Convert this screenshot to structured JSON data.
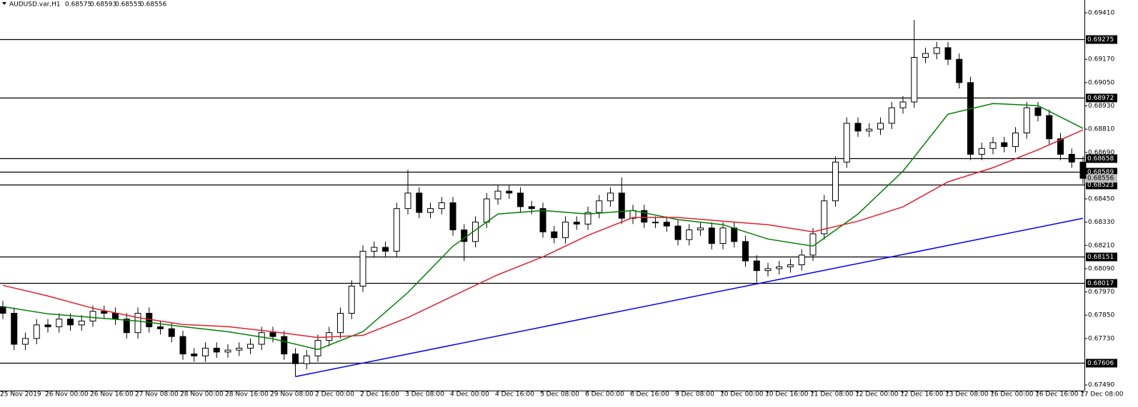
{
  "chart_data": {
    "type": "candlestick",
    "title": "AUDUSD.var,H1",
    "last_bar": [
      0.68575,
      0.68593,
      0.68555,
      0.68556
    ],
    "categories": [
      "25 Nov 2019",
      null,
      null,
      null,
      "26 Nov 00:00",
      null,
      null,
      null,
      "26 Nov 16:00",
      null,
      null,
      null,
      "27 Nov 08:00",
      null,
      null,
      null,
      "28 Nov 00:00",
      null,
      null,
      null,
      "28 Nov 16:00",
      null,
      null,
      null,
      "29 Nov 08:00",
      null,
      null,
      null,
      "2 Dec 00:00",
      null,
      null,
      null,
      "2 Dec 16:00",
      null,
      null,
      null,
      "3 Dec 08:00",
      null,
      null,
      null,
      "4 Dec 00:00",
      null,
      null,
      null,
      "4 Dec 16:00",
      null,
      null,
      null,
      "5 Dec 08:00",
      null,
      null,
      null,
      "6 Dec 00:00",
      null,
      null,
      null,
      "6 Dec 16:00",
      null,
      null,
      null,
      "9 Dec 08:00",
      null,
      null,
      null,
      "10 Dec 00:00",
      null,
      null,
      null,
      "10 Dec 16:00",
      null,
      null,
      null,
      "11 Dec 08:00",
      null,
      null,
      null,
      "12 Dec 00:00",
      null,
      null,
      null,
      "12 Dec 16:00",
      null,
      null,
      null,
      "13 Dec 08:00",
      null,
      null,
      null,
      "16 Dec 00:00",
      null,
      null,
      null,
      "16 Dec 16:00",
      null,
      null,
      null,
      "17 Dec 08:00"
    ],
    "open": [
      0.67894,
      0.6786,
      0.677,
      0.6773,
      0.678,
      0.6779,
      0.6783,
      0.678,
      0.6782,
      0.6787,
      0.6786,
      0.6783,
      0.6776,
      0.6786,
      0.6779,
      0.6778,
      0.6774,
      0.6765,
      0.6764,
      0.6768,
      0.6766,
      0.6767,
      0.6768,
      0.677,
      0.6776,
      0.6774,
      0.6765,
      0.676,
      0.6764,
      0.6772,
      0.6776,
      0.6786,
      0.68,
      0.6818,
      0.682,
      0.6818,
      0.684,
      0.6848,
      0.6838,
      0.684,
      0.6843,
      0.6829,
      0.6823,
      0.6833,
      0.6845,
      0.6849,
      0.6848,
      0.6841,
      0.684,
      0.6828,
      0.6825,
      0.6833,
      0.6832,
      0.6838,
      0.6844,
      0.6848,
      0.6835,
      0.6839,
      0.6833,
      0.6833,
      0.6831,
      0.6824,
      0.6829,
      0.683,
      0.6822,
      0.683,
      0.6823,
      0.6813,
      0.6808,
      0.6809,
      0.681,
      0.6811,
      0.6816,
      0.6827,
      0.6844,
      0.6864,
      0.6884,
      0.688,
      0.6881,
      0.6884,
      0.6892,
      0.6895,
      0.6918,
      0.692,
      0.6923,
      0.6917,
      0.6905,
      0.6868,
      0.6871,
      0.6874,
      0.6872,
      0.6879,
      0.6892,
      0.6888,
      0.6876,
      0.6868,
      0.6864
    ],
    "high": [
      0.67924,
      0.6789,
      0.6776,
      0.6783,
      0.6783,
      0.6786,
      0.6786,
      0.6785,
      0.679,
      0.679,
      0.6789,
      0.6786,
      0.6789,
      0.6789,
      0.6782,
      0.6781,
      0.6777,
      0.6768,
      0.6771,
      0.6771,
      0.677,
      0.6771,
      0.6773,
      0.6779,
      0.6779,
      0.6777,
      0.6768,
      0.6767,
      0.6775,
      0.6779,
      0.6789,
      0.6803,
      0.6821,
      0.6823,
      0.6823,
      0.6843,
      0.686,
      0.6851,
      0.6843,
      0.6846,
      0.6846,
      0.6832,
      0.6836,
      0.6848,
      0.6852,
      0.6852,
      0.6851,
      0.6844,
      0.6843,
      0.6831,
      0.6836,
      0.6836,
      0.6841,
      0.6847,
      0.6851,
      0.6856,
      0.6842,
      0.6842,
      0.6836,
      0.6836,
      0.6834,
      0.6832,
      0.6833,
      0.6833,
      0.6833,
      0.6833,
      0.6826,
      0.6816,
      0.6812,
      0.6813,
      0.6814,
      0.6819,
      0.683,
      0.6847,
      0.6867,
      0.6887,
      0.6887,
      0.6884,
      0.6887,
      0.6895,
      0.6898,
      0.69373,
      0.6923,
      0.6926,
      0.6926,
      0.692,
      0.6908,
      0.6874,
      0.6877,
      0.6877,
      0.6882,
      0.6895,
      0.6895,
      0.6891,
      0.6879,
      0.6871,
      0.6867
    ],
    "low": [
      0.6783,
      0.6767,
      0.6767,
      0.677,
      0.6776,
      0.6776,
      0.6777,
      0.6777,
      0.6779,
      0.6783,
      0.678,
      0.6773,
      0.6773,
      0.6776,
      0.6775,
      0.6771,
      0.6762,
      0.6761,
      0.6761,
      0.6763,
      0.6763,
      0.6764,
      0.6765,
      0.6767,
      0.6771,
      0.6762,
      0.67533,
      0.6757,
      0.6761,
      0.6769,
      0.6773,
      0.6783,
      0.6797,
      0.6815,
      0.6815,
      0.6815,
      0.6837,
      0.6835,
      0.6835,
      0.6837,
      0.6826,
      0.6813,
      0.682,
      0.683,
      0.6842,
      0.6845,
      0.6838,
      0.6837,
      0.6825,
      0.6822,
      0.6822,
      0.6829,
      0.6829,
      0.6835,
      0.6841,
      0.6832,
      0.6832,
      0.683,
      0.683,
      0.6828,
      0.6821,
      0.6821,
      0.6826,
      0.6819,
      0.6819,
      0.682,
      0.681,
      0.68017,
      0.6805,
      0.6806,
      0.6807,
      0.6808,
      0.6813,
      0.6824,
      0.6841,
      0.6861,
      0.6877,
      0.6877,
      0.6878,
      0.6881,
      0.6889,
      0.6892,
      0.6915,
      0.6917,
      0.6914,
      0.6902,
      0.6865,
      0.6865,
      0.6868,
      0.6869,
      0.6869,
      0.6876,
      0.6885,
      0.6873,
      0.6865,
      0.6861,
      0.68526
    ],
    "close": [
      0.6786,
      0.677,
      0.6773,
      0.678,
      0.6779,
      0.6783,
      0.678,
      0.6782,
      0.6787,
      0.6786,
      0.6783,
      0.6776,
      0.6786,
      0.6779,
      0.6778,
      0.6774,
      0.6765,
      0.6764,
      0.6768,
      0.6766,
      0.6767,
      0.6768,
      0.677,
      0.6776,
      0.6774,
      0.6765,
      0.676,
      0.6764,
      0.6772,
      0.6776,
      0.6786,
      0.68,
      0.6818,
      0.682,
      0.6818,
      0.684,
      0.6848,
      0.6838,
      0.684,
      0.6843,
      0.6829,
      0.6823,
      0.6833,
      0.6845,
      0.6849,
      0.6848,
      0.6841,
      0.684,
      0.6828,
      0.6825,
      0.6833,
      0.6832,
      0.6838,
      0.6844,
      0.6848,
      0.6835,
      0.6839,
      0.6833,
      0.6833,
      0.6831,
      0.6824,
      0.6829,
      0.683,
      0.6822,
      0.683,
      0.6823,
      0.6813,
      0.6808,
      0.6809,
      0.681,
      0.6811,
      0.6816,
      0.6827,
      0.6844,
      0.6864,
      0.6884,
      0.688,
      0.6881,
      0.6884,
      0.6892,
      0.6895,
      0.6918,
      0.692,
      0.6923,
      0.6917,
      0.6905,
      0.6868,
      0.6871,
      0.6874,
      0.6872,
      0.6879,
      0.6892,
      0.6888,
      0.6876,
      0.6868,
      0.6864,
      0.68556
    ],
    "lines": [
      {
        "color": "#008000",
        "x": [
          0,
          4,
          8,
          12,
          16,
          20,
          24,
          28,
          32,
          36,
          40,
          44,
          48,
          52,
          56,
          60,
          64,
          68,
          72,
          76,
          80,
          84,
          88,
          92,
          96
        ],
        "values": [
          0.67894,
          0.67857,
          0.67838,
          0.6782,
          0.67791,
          0.67765,
          0.67728,
          0.67673,
          0.67765,
          0.67967,
          0.68206,
          0.68372,
          0.6839,
          0.68372,
          0.6839,
          0.68343,
          0.68317,
          0.68243,
          0.68206,
          0.68372,
          0.68593,
          0.68887,
          0.68942,
          0.68931,
          0.68814
        ]
      },
      {
        "color": "#e0202e",
        "x": [
          0,
          4,
          8,
          12,
          16,
          20,
          24,
          28,
          32,
          36,
          40,
          44,
          48,
          52,
          56,
          60,
          64,
          68,
          72,
          76,
          80,
          84,
          88,
          92,
          96
        ],
        "values": [
          0.68004,
          0.67949,
          0.67886,
          0.67838,
          0.67802,
          0.67791,
          0.67765,
          0.67735,
          0.67746,
          0.67838,
          0.67949,
          0.68059,
          0.68151,
          0.68262,
          0.68354,
          0.68354,
          0.68335,
          0.68317,
          0.6828,
          0.68335,
          0.68409,
          0.68538,
          0.68611,
          0.68703,
          0.68806
        ]
      },
      {
        "color": "#0000ff",
        "x": [
          26,
          96
        ],
        "values": [
          0.67533,
          0.6835
        ]
      }
    ],
    "levels": [
      0.69275,
      0.68972,
      0.68658,
      0.68589,
      0.68523,
      0.68151,
      0.68017,
      0.67606
    ],
    "bid": 0.68556,
    "ylim": [
      0.67461,
      0.69476
    ],
    "yticks": [
      {
        "value": 0.6941,
        "label": "0.69410"
      },
      {
        "value": 0.6917,
        "label": "0.69170"
      },
      {
        "value": 0.6905,
        "label": "0.69050"
      },
      {
        "value": 0.6893,
        "label": "0.68930"
      },
      {
        "value": 0.6881,
        "label": "0.68810"
      },
      {
        "value": 0.6869,
        "label": "0.68690"
      },
      {
        "value": 0.6845,
        "label": "0.68450"
      },
      {
        "value": 0.6833,
        "label": "0.68330"
      },
      {
        "value": 0.6821,
        "label": "0.68210"
      },
      {
        "value": 0.6809,
        "label": "0.68090"
      },
      {
        "value": 0.6797,
        "label": "0.67970"
      },
      {
        "value": 0.6785,
        "label": "0.67850"
      },
      {
        "value": 0.6773,
        "label": "0.67730"
      },
      {
        "value": 0.6749,
        "label": "0.67490"
      }
    ]
  }
}
